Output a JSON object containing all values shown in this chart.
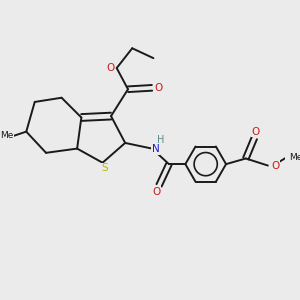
{
  "bg_color": "#ebebeb",
  "bond_color": "#1a1a1a",
  "S_color": "#b8b800",
  "N_color": "#1a1acc",
  "O_color": "#cc1a1a",
  "figsize": [
    3.0,
    3.0
  ],
  "dpi": 100,
  "xlim": [
    0,
    10
  ],
  "ylim": [
    0,
    10
  ],
  "lw": 1.4,
  "fs": 7.5
}
